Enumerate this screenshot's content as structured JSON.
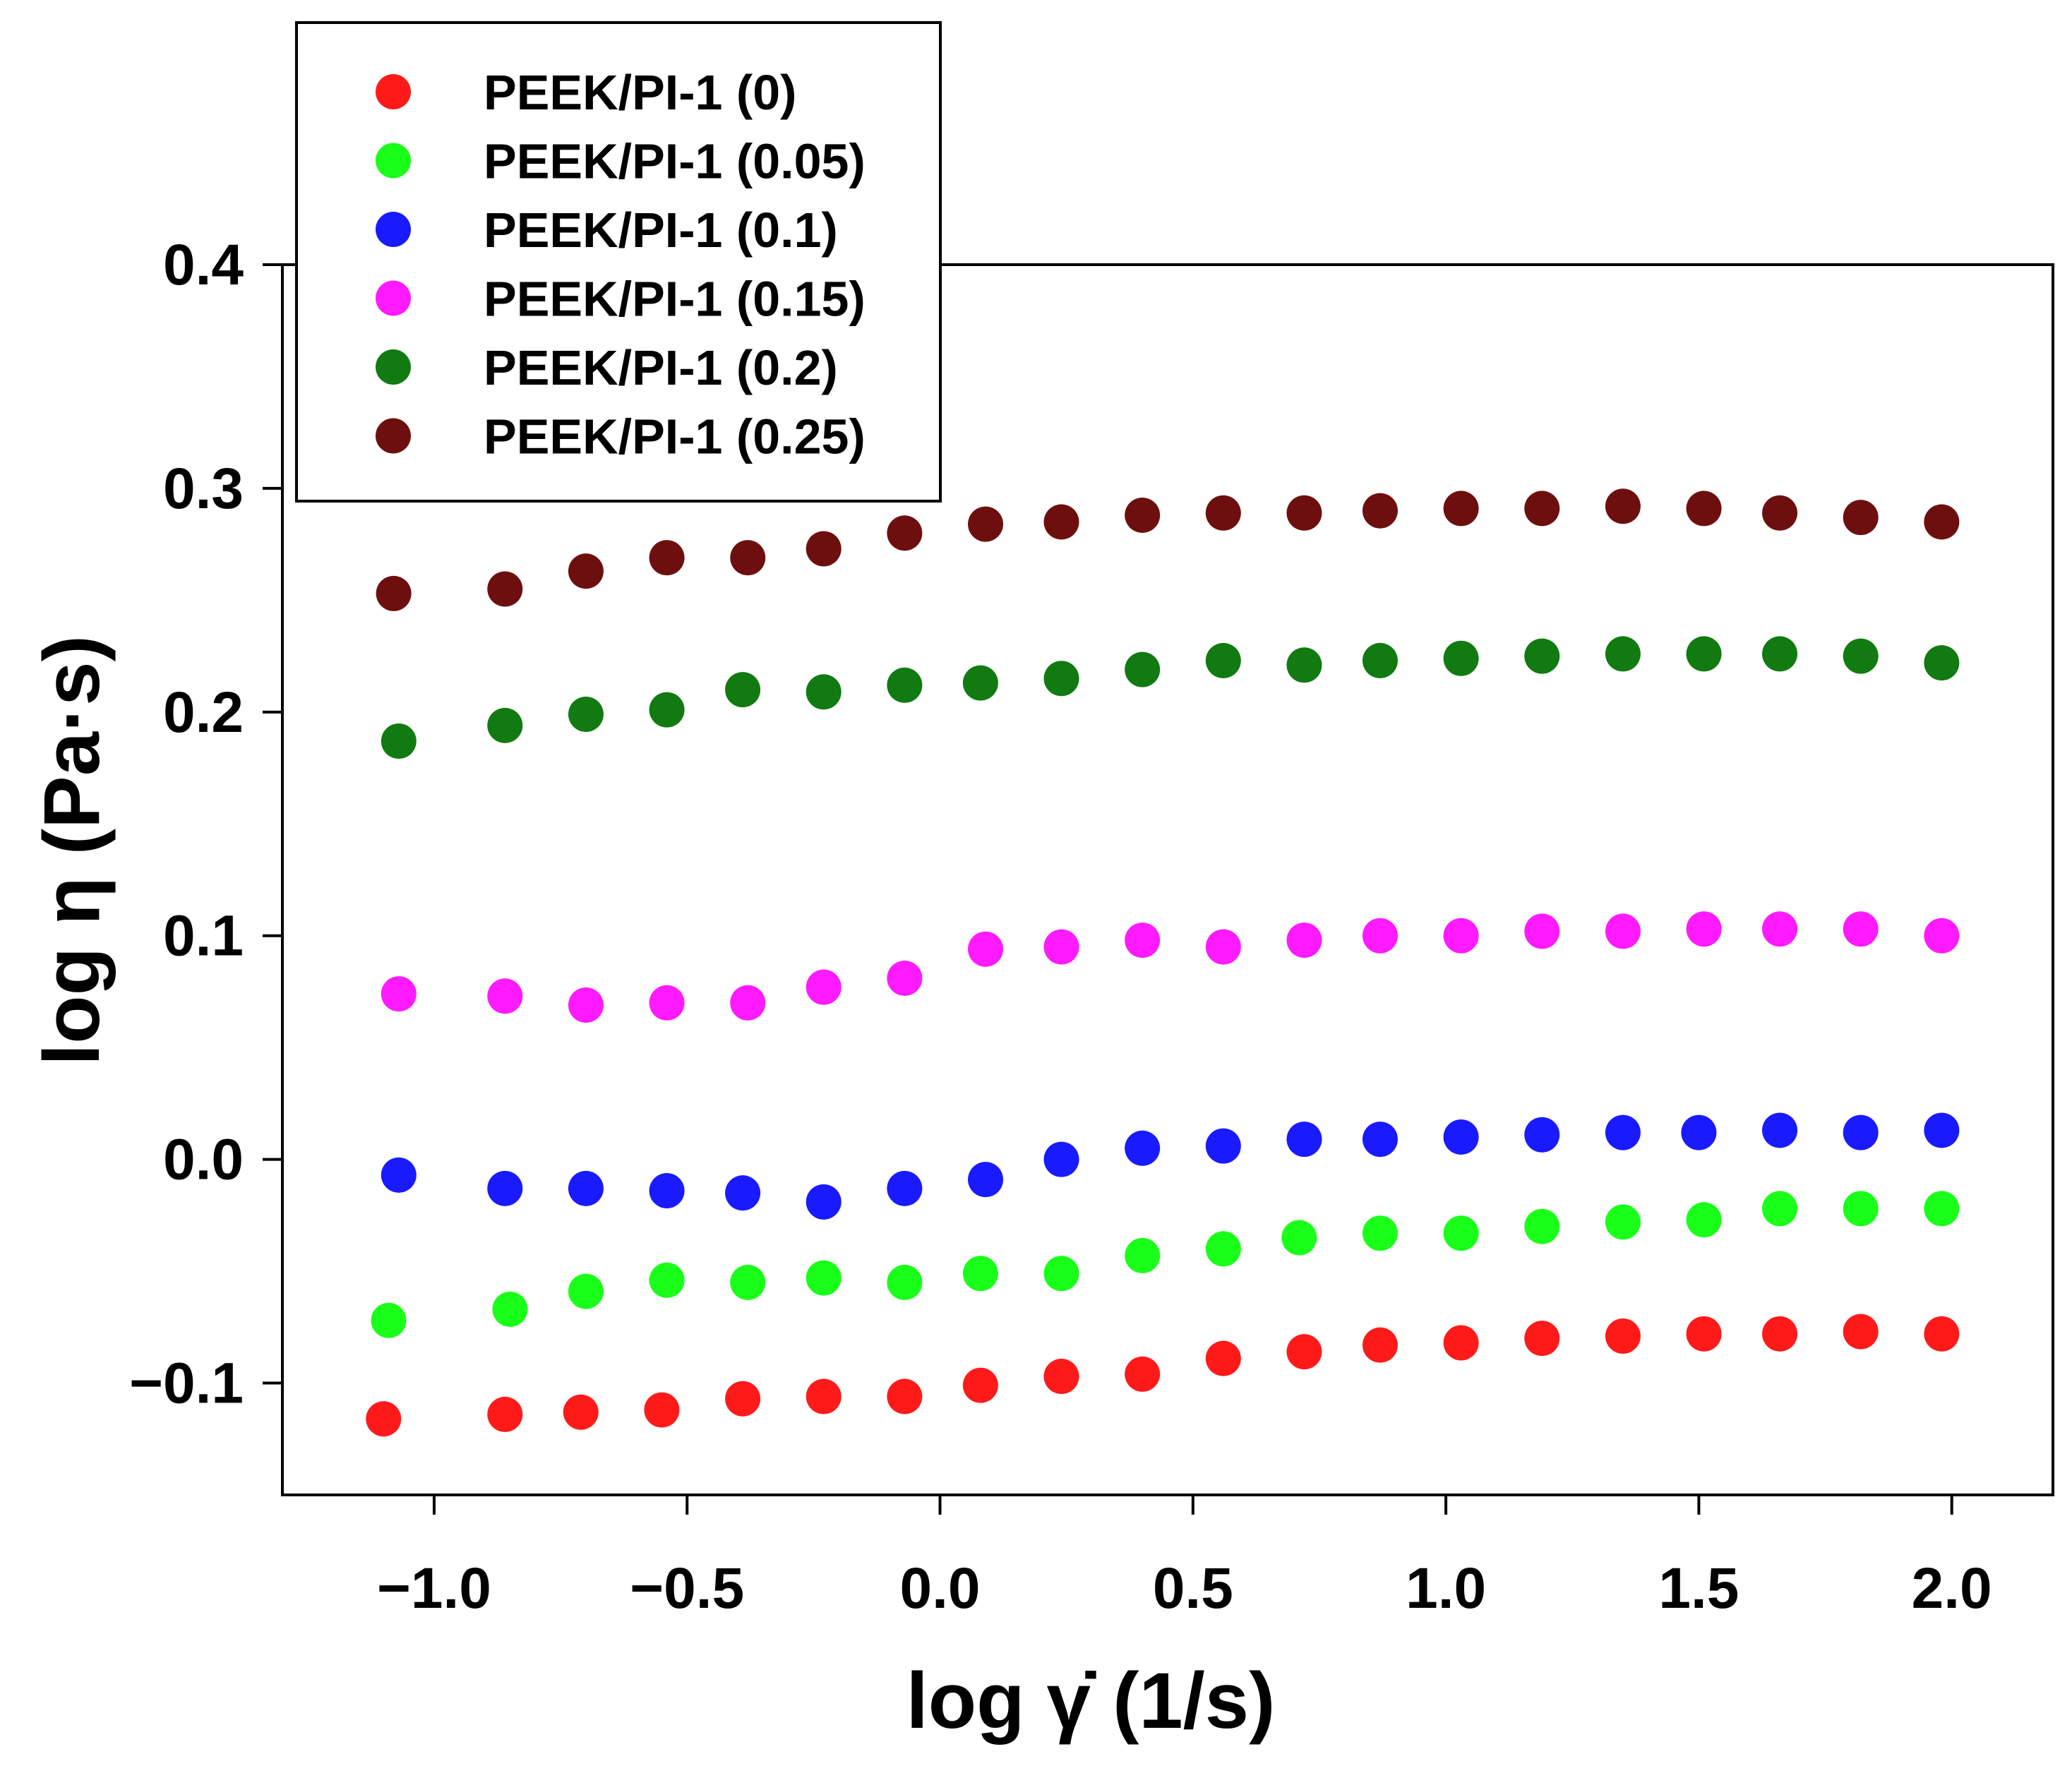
{
  "chart_data": {
    "type": "scatter",
    "title": "",
    "xlabel": "log γ̇ (1/s)",
    "ylabel": "log η (Pa·s)",
    "xlim": [
      -1.3,
      2.2
    ],
    "ylim": [
      -0.15,
      0.4
    ],
    "grid": false,
    "legend_position": "top-left",
    "x_ticks": [
      -1.0,
      -0.5,
      0.0,
      0.5,
      1.0,
      1.5,
      2.0
    ],
    "x_tick_labels": [
      "−1.0",
      "−0.5",
      "0.0",
      "0.5",
      "1.0",
      "1.5",
      "2.0"
    ],
    "y_ticks": [
      -0.1,
      0.0,
      0.1,
      0.2,
      0.3,
      0.4
    ],
    "y_tick_labels": [
      "−0.1",
      "0.0",
      "0.1",
      "0.2",
      "0.3",
      "0.4"
    ],
    "series": [
      {
        "name": "PEEK/PI-1 (0)",
        "color": "#ff1a1a",
        "x": [
          -1.1,
          -0.86,
          -0.71,
          -0.55,
          -0.39,
          -0.23,
          -0.07,
          0.08,
          0.24,
          0.4,
          0.56,
          0.72,
          0.87,
          1.03,
          1.19,
          1.35,
          1.51,
          1.66,
          1.82,
          1.98
        ],
        "y": [
          -0.116,
          -0.114,
          -0.113,
          -0.112,
          -0.107,
          -0.106,
          -0.106,
          -0.101,
          -0.097,
          -0.096,
          -0.089,
          -0.086,
          -0.083,
          -0.082,
          -0.08,
          -0.079,
          -0.078,
          -0.078,
          -0.077,
          -0.078
        ]
      },
      {
        "name": "PEEK/PI-1 (0.05)",
        "color": "#1aff1a",
        "x": [
          -1.09,
          -0.85,
          -0.7,
          -0.54,
          -0.38,
          -0.23,
          -0.07,
          0.08,
          0.24,
          0.4,
          0.56,
          0.71,
          0.87,
          1.03,
          1.19,
          1.35,
          1.51,
          1.66,
          1.82,
          1.98
        ],
        "y": [
          -0.072,
          -0.067,
          -0.059,
          -0.054,
          -0.055,
          -0.053,
          -0.055,
          -0.051,
          -0.051,
          -0.043,
          -0.04,
          -0.035,
          -0.033,
          -0.033,
          -0.03,
          -0.028,
          -0.027,
          -0.022,
          -0.022,
          -0.022
        ]
      },
      {
        "name": "PEEK/PI-1 (0.1)",
        "color": "#1a1aff",
        "x": [
          -1.07,
          -0.86,
          -0.7,
          -0.54,
          -0.39,
          -0.23,
          -0.07,
          0.09,
          0.24,
          0.4,
          0.56,
          0.72,
          0.87,
          1.03,
          1.19,
          1.35,
          1.5,
          1.66,
          1.82,
          1.98
        ],
        "y": [
          -0.007,
          -0.013,
          -0.013,
          -0.014,
          -0.015,
          -0.019,
          -0.013,
          -0.009,
          0.0,
          0.005,
          0.006,
          0.009,
          0.009,
          0.01,
          0.011,
          0.012,
          0.012,
          0.013,
          0.012,
          0.013
        ]
      },
      {
        "name": "PEEK/PI-1 (0.15)",
        "color": "#ff1aff",
        "x": [
          -1.07,
          -0.86,
          -0.7,
          -0.54,
          -0.38,
          -0.23,
          -0.07,
          0.09,
          0.24,
          0.4,
          0.56,
          0.72,
          0.87,
          1.03,
          1.19,
          1.35,
          1.51,
          1.66,
          1.82,
          1.98
        ],
        "y": [
          0.074,
          0.073,
          0.069,
          0.07,
          0.07,
          0.077,
          0.081,
          0.094,
          0.095,
          0.098,
          0.095,
          0.098,
          0.1,
          0.1,
          0.102,
          0.102,
          0.103,
          0.103,
          0.103,
          0.1
        ]
      },
      {
        "name": "PEEK/PI-1 (0.2)",
        "color": "#117a11",
        "x": [
          -1.07,
          -0.86,
          -0.7,
          -0.54,
          -0.39,
          -0.23,
          -0.07,
          0.08,
          0.24,
          0.4,
          0.56,
          0.72,
          0.87,
          1.03,
          1.19,
          1.35,
          1.51,
          1.66,
          1.82,
          1.98
        ],
        "y": [
          0.187,
          0.194,
          0.199,
          0.201,
          0.21,
          0.209,
          0.212,
          0.213,
          0.215,
          0.219,
          0.223,
          0.221,
          0.223,
          0.224,
          0.225,
          0.226,
          0.226,
          0.226,
          0.225,
          0.222
        ]
      },
      {
        "name": "PEEK/PI-1 (0.25)",
        "color": "#6e0f0f",
        "x": [
          -1.08,
          -0.86,
          -0.7,
          -0.54,
          -0.38,
          -0.23,
          -0.07,
          0.09,
          0.24,
          0.4,
          0.56,
          0.72,
          0.87,
          1.03,
          1.19,
          1.35,
          1.51,
          1.66,
          1.82,
          1.98
        ],
        "y": [
          0.253,
          0.255,
          0.263,
          0.269,
          0.269,
          0.273,
          0.28,
          0.284,
          0.285,
          0.288,
          0.289,
          0.289,
          0.29,
          0.291,
          0.291,
          0.292,
          0.291,
          0.289,
          0.287,
          0.285
        ]
      }
    ]
  }
}
